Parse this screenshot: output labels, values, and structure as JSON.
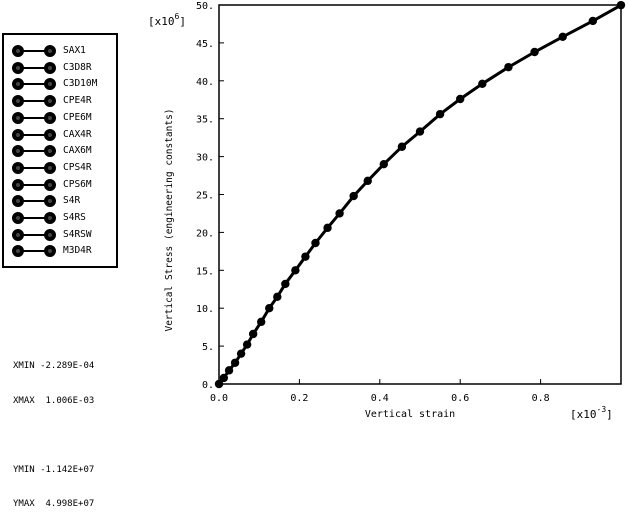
{
  "chart_data": {
    "type": "line",
    "x_multiplier_label": "[x10",
    "x_multiplier_exp": "-3",
    "y_multiplier_label": "[x10",
    "y_multiplier_exp": "6",
    "xlabel": "Vertical strain",
    "ylabel": "Vertical Stress (engineering constants)",
    "xlim": [
      0.0,
      1.0
    ],
    "ylim": [
      0,
      50
    ],
    "x_ticks": [
      0.0,
      0.2,
      0.4,
      0.6,
      0.8
    ],
    "x_tick_labels": [
      "0.0",
      "0.2",
      "0.4",
      "0.6",
      "0.8"
    ],
    "y_ticks": [
      0,
      5,
      10,
      15,
      20,
      25,
      30,
      35,
      40,
      45,
      50
    ],
    "y_tick_labels": [
      "0.",
      "5.",
      "10.",
      "15.",
      "20.",
      "25.",
      "30.",
      "35.",
      "40.",
      "45.",
      "50."
    ],
    "series": [
      {
        "x": [
          0.0,
          0.012,
          0.025,
          0.04,
          0.055,
          0.07,
          0.085,
          0.105,
          0.125,
          0.145,
          0.165,
          0.19,
          0.215,
          0.24,
          0.27,
          0.3,
          0.335,
          0.37,
          0.41,
          0.455,
          0.5,
          0.55,
          0.6,
          0.655,
          0.72,
          0.785,
          0.855,
          0.93,
          1.0
        ],
        "y": [
          0.0,
          0.8,
          1.8,
          2.8,
          4.0,
          5.2,
          6.6,
          8.2,
          10.0,
          11.5,
          13.2,
          15.0,
          16.8,
          18.6,
          20.6,
          22.5,
          24.8,
          26.8,
          29.0,
          31.3,
          33.3,
          35.6,
          37.6,
          39.6,
          41.8,
          43.8,
          45.8,
          47.9,
          49.98
        ]
      }
    ],
    "legend": {
      "placement": "left",
      "entries": [
        "SAX1",
        "C3D8R",
        "C3D10M",
        "CPE4R",
        "CPE6M",
        "CAX4R",
        "CAX6M",
        "CPS4R",
        "CPS6M",
        "S4R",
        "S4RS",
        "S4RSW",
        "M3D4R"
      ]
    },
    "stats": {
      "xmin": "XMIN -2.289E-04",
      "xmax": "XMAX  1.006E-03",
      "ymin": "YMIN -1.142E+07",
      "ymax": "YMAX  4.998E+07"
    }
  }
}
